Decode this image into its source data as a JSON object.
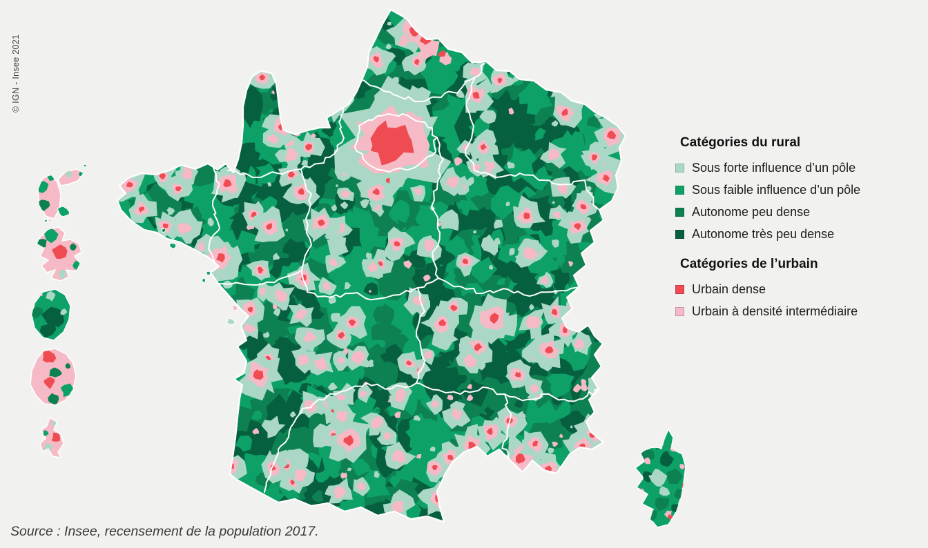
{
  "copyright_note": "© IGN - Insee 2021",
  "source_note": "Source : Insee, recensement de la population 2017.",
  "background_color": "#f1f1ef",
  "legend": {
    "rural": {
      "title": "Catégories du rural",
      "items": [
        {
          "label": "Sous forte influence d’un pôle",
          "color": "#abd8c6"
        },
        {
          "label": "Sous faible influence d’un pôle",
          "color": "#0da167"
        },
        {
          "label": "Autonome peu dense",
          "color": "#0d8152"
        },
        {
          "label": "Autonome très peu dense",
          "color": "#06603f"
        }
      ]
    },
    "urban": {
      "title": "Catégories de l’urbain",
      "items": [
        {
          "label": "Urbain dense",
          "color": "#ee4c52"
        },
        {
          "label": "Urbain à densité intermédiaire",
          "color": "#f5bac5"
        }
      ]
    }
  },
  "map": {
    "palette": {
      "light": "#abd8c6",
      "medium": "#0da167",
      "dark": "#0d8152",
      "vdark": "#06603f",
      "red": "#ee4c52",
      "pink": "#f5bac5",
      "boundary": "#ffffff"
    }
  }
}
